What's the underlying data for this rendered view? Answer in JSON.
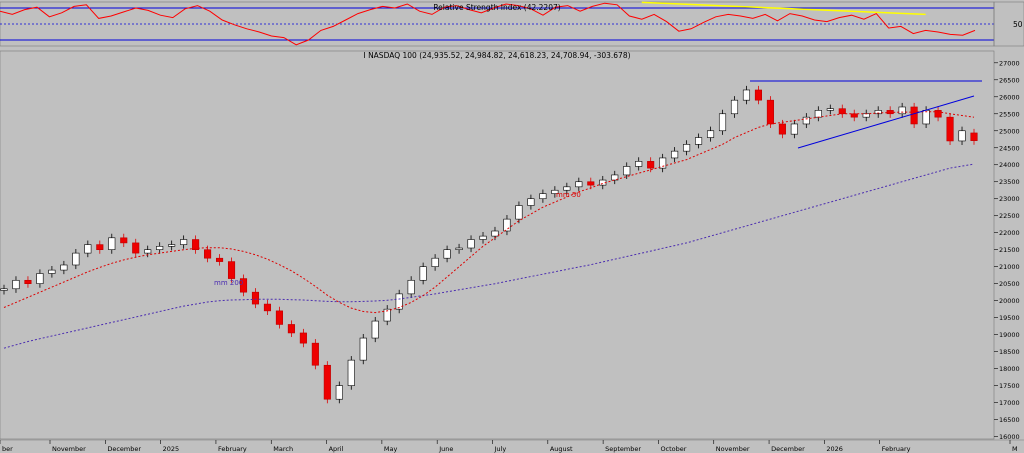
{
  "chart_data": [
    {
      "type": "line",
      "title": "Relative Strength Index (42.2207)",
      "y_ticks": [
        {
          "label": "50",
          "value": 50
        }
      ],
      "ylim": [
        0,
        100
      ],
      "reference_lines": [
        70,
        50,
        30
      ],
      "series": [
        {
          "values": [
            66,
            62,
            68,
            71,
            59,
            64,
            72,
            74,
            57,
            60,
            65,
            70,
            67,
            61,
            58,
            69,
            73,
            66,
            55,
            49,
            44,
            40,
            35,
            33,
            24,
            30,
            42,
            47,
            55,
            63,
            68,
            72,
            70,
            75,
            66,
            62,
            71,
            73,
            68,
            64,
            70,
            75,
            73,
            69,
            61,
            71,
            73,
            66,
            72,
            76,
            74,
            60,
            56,
            62,
            53,
            41,
            44,
            52,
            59,
            62,
            60,
            57,
            62,
            54,
            63,
            60,
            55,
            53,
            58,
            61,
            56,
            63,
            45,
            47,
            38,
            42,
            40,
            37,
            36,
            42
          ]
        }
      ],
      "trendline": {
        "from": [
          52,
          77
        ],
        "to": [
          75,
          62
        ],
        "color": "#ffff00"
      }
    },
    {
      "type": "candlestick",
      "title": "I NASDAQ 100 (24,935.52, 24,984.82, 24,618.23, 24,708.94, -303.678)",
      "x_labels": [
        "ber",
        "November",
        "December",
        "2025",
        "February",
        "March",
        "April",
        "May",
        "June",
        "July",
        "August",
        "September",
        "October",
        "November",
        "December",
        "2026",
        "February",
        "M"
      ],
      "y_ticks": [
        16000,
        16500,
        17000,
        17500,
        18000,
        18500,
        19000,
        19500,
        20000,
        20500,
        21000,
        21500,
        22000,
        22500,
        23000,
        23500,
        24000,
        24500,
        25000,
        25500,
        26000,
        26500,
        27000
      ],
      "ylim": [
        15900,
        27200
      ],
      "ma_labels": [
        "mm 50",
        "mm 200"
      ],
      "closes": [
        20350,
        20600,
        20500,
        20800,
        20900,
        21050,
        21400,
        21650,
        21500,
        21850,
        21700,
        21400,
        21500,
        21600,
        21650,
        21800,
        21500,
        21250,
        21150,
        20650,
        20250,
        19900,
        19700,
        19300,
        19050,
        18750,
        18100,
        17100,
        17500,
        18250,
        18900,
        19400,
        19750,
        20200,
        20600,
        21000,
        21250,
        21500,
        21550,
        21800,
        21900,
        22050,
        22400,
        22800,
        23000,
        23150,
        23250,
        23350,
        23500,
        23400,
        23550,
        23700,
        23950,
        24100,
        23900,
        24200,
        24400,
        24600,
        24800,
        25000,
        25500,
        25900,
        26200,
        25900,
        25200,
        24900,
        25200,
        25400,
        25600,
        25650,
        25500,
        25400,
        25500,
        25600,
        25500,
        25700,
        25200,
        25600,
        25400,
        24700,
        25000,
        24708.94
      ],
      "opens": [
        20300,
        20350,
        20600,
        20500,
        20800,
        20900,
        21050,
        21400,
        21650,
        21500,
        21850,
        21700,
        21400,
        21500,
        21600,
        21650,
        21800,
        21500,
        21250,
        21150,
        20650,
        20250,
        19900,
        19700,
        19300,
        19050,
        18750,
        18100,
        17100,
        17500,
        18250,
        18900,
        19400,
        19750,
        20200,
        20600,
        21000,
        21250,
        21500,
        21550,
        21800,
        21900,
        22050,
        22400,
        22800,
        23000,
        23150,
        23250,
        23350,
        23500,
        23400,
        23550,
        23700,
        23950,
        24100,
        23900,
        24200,
        24400,
        24600,
        24800,
        25000,
        25500,
        25900,
        26200,
        25900,
        25200,
        24900,
        25200,
        25400,
        25600,
        25650,
        25500,
        25400,
        25500,
        25600,
        25500,
        25700,
        25200,
        25600,
        25400,
        24700,
        24935.52
      ],
      "ma50": [
        19800,
        19950,
        20100,
        20250,
        20400,
        20550,
        20700,
        20850,
        20980,
        21100,
        21200,
        21280,
        21350,
        21400,
        21450,
        21500,
        21540,
        21560,
        21560,
        21520,
        21450,
        21350,
        21220,
        21060,
        20880,
        20660,
        20420,
        20160,
        19950,
        19780,
        19680,
        19650,
        19700,
        19800,
        19950,
        20150,
        20400,
        20700,
        21000,
        21300,
        21600,
        21850,
        22100,
        22350,
        22550,
        22750,
        22900,
        23050,
        23200,
        23320,
        23450,
        23550,
        23650,
        23750,
        23850,
        23950,
        24050,
        24150,
        24300,
        24450,
        24600,
        24800,
        24950,
        25100,
        25200,
        25250,
        25300,
        25350,
        25400,
        25450,
        25500,
        25500,
        25500,
        25520,
        25540,
        25550,
        25550,
        25560,
        25560,
        25500,
        25450,
        25400
      ],
      "ma200": [
        18600,
        18700,
        18800,
        18880,
        18960,
        19040,
        19120,
        19200,
        19280,
        19360,
        19440,
        19520,
        19600,
        19680,
        19760,
        19840,
        19900,
        19960,
        20000,
        20020,
        20030,
        20040,
        20040,
        20040,
        20030,
        20020,
        20000,
        19980,
        19970,
        19970,
        19980,
        19990,
        20010,
        20050,
        20100,
        20150,
        20200,
        20260,
        20320,
        20380,
        20440,
        20500,
        20570,
        20640,
        20710,
        20780,
        20850,
        20920,
        20990,
        21060,
        21140,
        21220,
        21300,
        21380,
        21460,
        21540,
        21620,
        21700,
        21800,
        21900,
        22000,
        22100,
        22200,
        22300,
        22400,
        22500,
        22600,
        22700,
        22800,
        22900,
        23000,
        23100,
        23200,
        23300,
        23400,
        23500,
        23600,
        23700,
        23800,
        23900,
        23960,
        24020
      ]
    }
  ]
}
